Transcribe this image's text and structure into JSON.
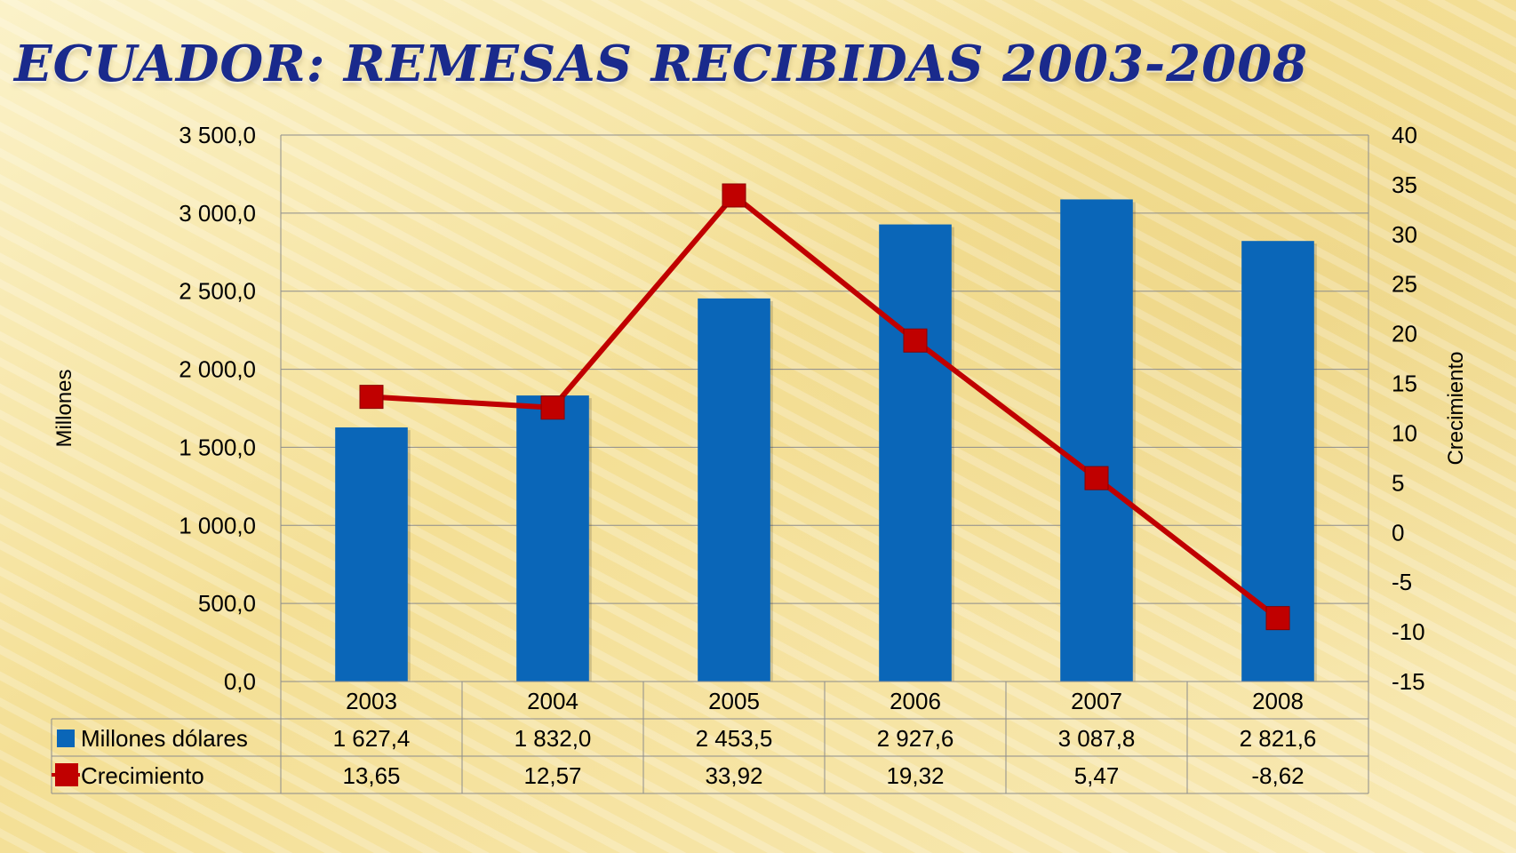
{
  "title": "ECUADOR: REMESAS RECIBIDAS 2003-2008",
  "colors": {
    "bar": "#0a66b8",
    "line": "#c00000",
    "title": "#1a2a8c"
  },
  "chart_data": {
    "type": "bar",
    "categories": [
      "2003",
      "2004",
      "2005",
      "2006",
      "2007",
      "2008"
    ],
    "series": [
      {
        "name": "Millones dólares",
        "type": "bar",
        "axis": "left",
        "values": [
          1627.4,
          1832.0,
          2453.5,
          2927.6,
          3087.8,
          2821.6
        ],
        "labels": [
          "1 627,4",
          "1 832,0",
          "2 453,5",
          "2 927,6",
          "3 087,8",
          "2 821,6"
        ]
      },
      {
        "name": "Crecimiento",
        "type": "line",
        "axis": "right",
        "values": [
          13.65,
          12.57,
          33.92,
          19.32,
          5.47,
          -8.62
        ],
        "labels": [
          "13,65",
          "12,57",
          "33,92",
          "19,32",
          "5,47",
          "-8,62"
        ]
      }
    ],
    "ylabel": "Millones",
    "y2label": "Crecimiento",
    "ylim": [
      0,
      3500
    ],
    "y2lim": [
      -15,
      40
    ],
    "yticks": [
      "0,0",
      "500,0",
      "1 000,0",
      "1 500,0",
      "2 000,0",
      "2 500,0",
      "3 000,0",
      "3 500,0"
    ],
    "y2ticks": [
      "-15",
      "-10",
      "-5",
      "0",
      "5",
      "10",
      "15",
      "20",
      "25",
      "30",
      "35",
      "40"
    ],
    "grid": true,
    "legend": "data-table"
  }
}
